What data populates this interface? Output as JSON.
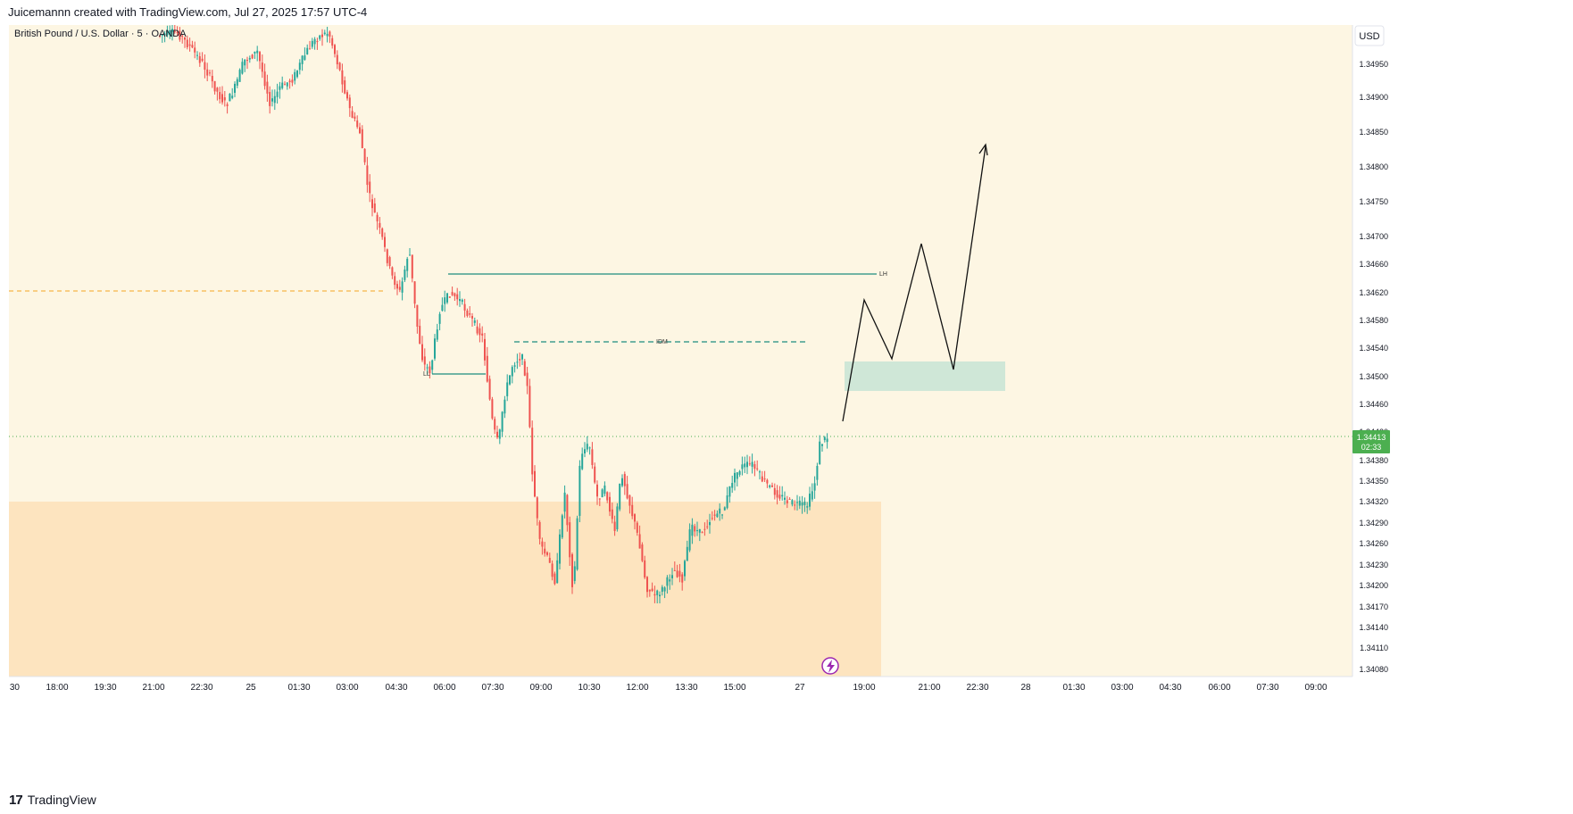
{
  "header": {
    "attribution": "Juicemannn created with TradingView.com, Jul 27, 2025 17:57 UTC-4"
  },
  "footer": {
    "logo_icon": "tradingview-logo-icon",
    "logo_text": "TradingView"
  },
  "chart_data": {
    "type": "candlestick",
    "title": "British Pound / U.S. Dollar · 5 · OANDA",
    "currency_button": "USD",
    "price_label": {
      "value": "1.34413",
      "countdown": "02:33"
    },
    "y_ticks": [
      "1.34950",
      "1.34900",
      "1.34850",
      "1.34800",
      "1.34750",
      "1.34700",
      "1.34660",
      "1.34620",
      "1.34580",
      "1.34540",
      "1.34500",
      "1.34460",
      "1.34420",
      "1.34380",
      "1.34350",
      "1.34320",
      "1.34290",
      "1.34260",
      "1.34230",
      "1.34200",
      "1.34170",
      "1.34140",
      "1.34110",
      "1.34080"
    ],
    "x_ticks": [
      ":30",
      "18:00",
      "19:30",
      "21:00",
      "22:30",
      "25",
      "01:30",
      "03:00",
      "04:30",
      "06:00",
      "07:30",
      "09:00",
      "10:30",
      "12:00",
      "13:30",
      "15:00",
      "27",
      "19:00",
      "21:00",
      "22:30",
      "28",
      "01:30",
      "03:00",
      "04:30",
      "06:00",
      "07:30",
      "09:00"
    ],
    "annotations": {
      "lh": "LH",
      "idm": "IDM",
      "ll": "LL"
    },
    "colors": {
      "up": "#26a69a",
      "down": "#ef5350",
      "background": "#fdf6e3",
      "demand_zone": "#fde4bf",
      "target_zone": "#cfe7d7",
      "lh_line": "#1e8c7e",
      "price_line": "#4caf50",
      "orange_line": "#f5a623"
    }
  }
}
